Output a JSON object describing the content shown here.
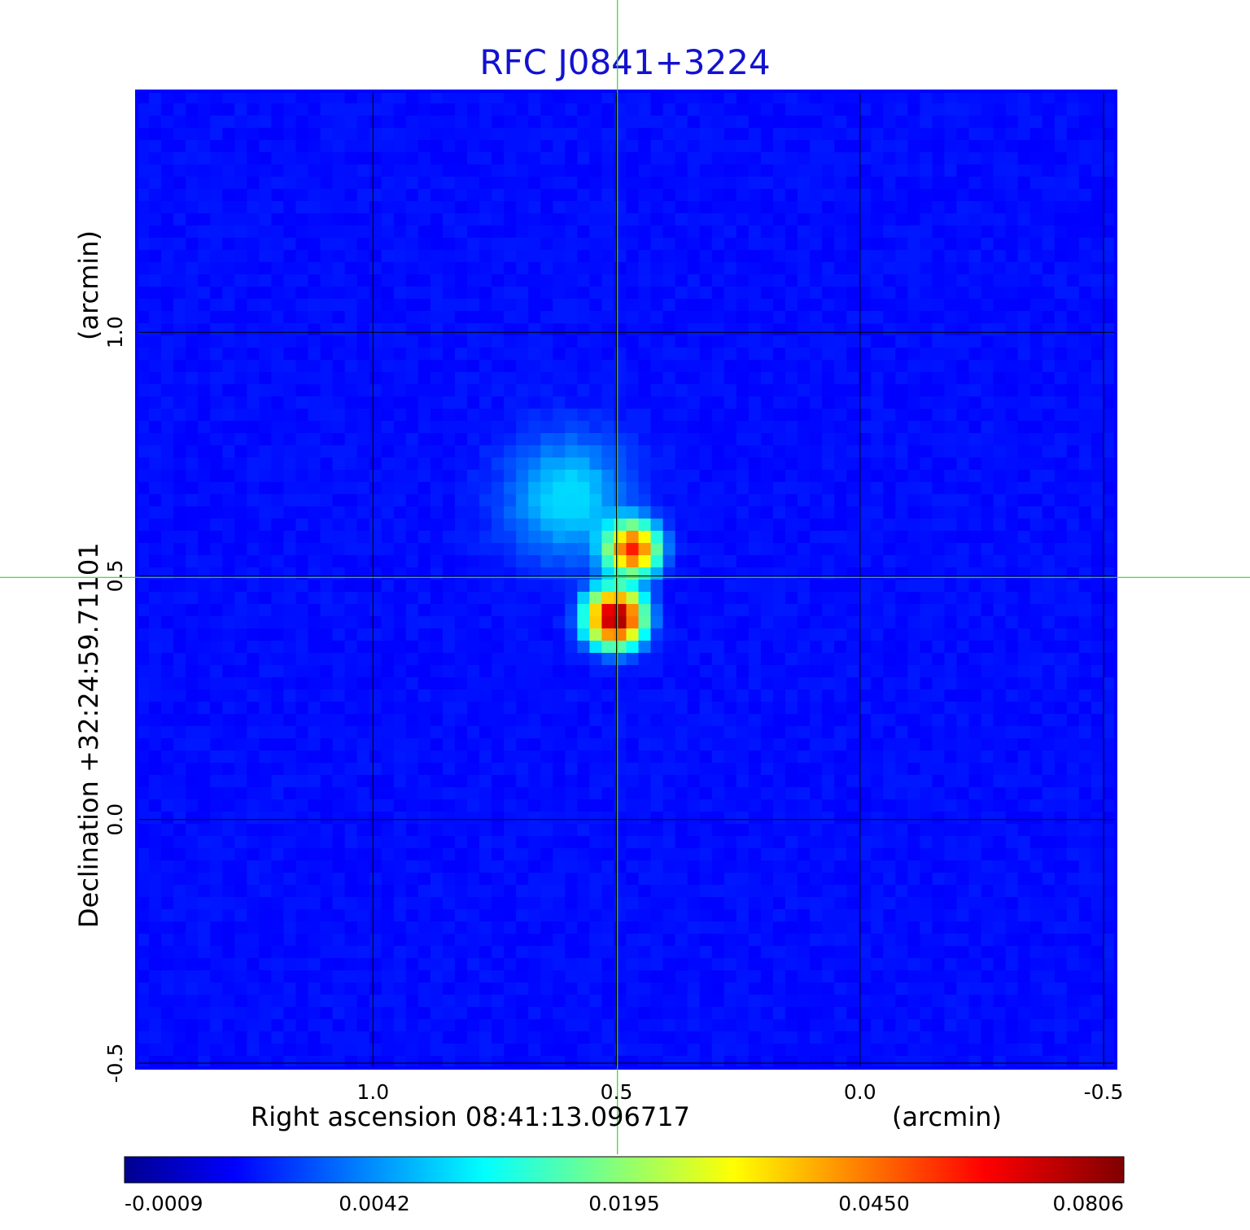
{
  "chart_data": {
    "type": "heatmap",
    "title": "RFC J0841+3224",
    "xlabel": "Right ascension  08:41:13.096717",
    "xunit": "(arcmin)",
    "ylabel": "Declination  +32:24:59.71101",
    "yunit": "(arcmin)",
    "x_ticks": [
      "1.0",
      "0.5",
      "0.0",
      "-0.5"
    ],
    "x_tick_values": [
      1.0,
      0.5,
      0.0,
      -0.5
    ],
    "y_ticks": [
      "1.0",
      "0.5",
      "0.0",
      "-0.5"
    ],
    "y_tick_values": [
      1.0,
      0.5,
      0.0,
      -0.5
    ],
    "xlim": [
      1.485,
      -0.525
    ],
    "ylim": [
      -0.51,
      1.495
    ],
    "crosshair": {
      "x": 0.498,
      "y": 0.497
    },
    "colormap": "jet",
    "colorbar_ticks": [
      "-0.0009",
      "0.0042",
      "0.0195",
      "0.0450",
      "0.0806"
    ],
    "background_level": -0.0003,
    "components": [
      {
        "x": 0.468,
        "y": 0.555,
        "peak": 0.056,
        "sigma": 0.03
      },
      {
        "x": 0.502,
        "y": 0.415,
        "peak": 0.0806,
        "sigma": 0.032
      },
      {
        "x": 0.6,
        "y": 0.66,
        "peak": 0.005,
        "sigma": 0.085
      }
    ],
    "grid": true
  },
  "colors": {
    "title": "#1212d0",
    "crosshair": "#22dd22",
    "grid": "#000000",
    "frame": "#0000ff"
  }
}
